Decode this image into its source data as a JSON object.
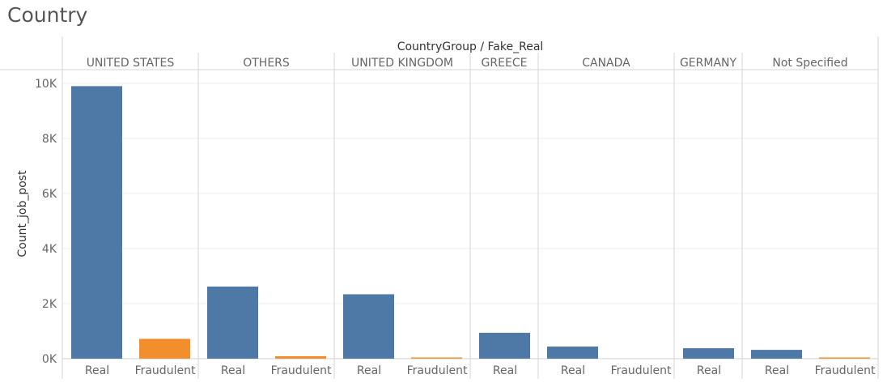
{
  "page": {
    "title": "Country"
  },
  "chart_data": {
    "type": "bar",
    "title": "Country",
    "header": "CountryGroup / Fake_Real",
    "ylabel": "Count_job_post",
    "xlabel": "",
    "groups": [
      "UNITED STATES",
      "OTHERS",
      "UNITED KINGDOM",
      "GREECE",
      "CANADA",
      "GERMANY",
      "Not Specified"
    ],
    "subcategories": [
      "Real",
      "Fraudulent"
    ],
    "series": [
      {
        "name": "Real",
        "values": [
          9900,
          2620,
          2340,
          940,
          440,
          380,
          320
        ]
      },
      {
        "name": "Fraudulent",
        "values": [
          720,
          90,
          20,
          0,
          0,
          0,
          20
        ]
      }
    ],
    "ylim": [
      0,
      10500
    ],
    "yticks": [
      0,
      2000,
      4000,
      6000,
      8000,
      10000
    ],
    "ytick_labels": [
      "0K",
      "2K",
      "4K",
      "6K",
      "8K",
      "10K"
    ],
    "colors": {
      "Real": "#4e79a7",
      "Fraudulent": "#f28e2b"
    },
    "grid": true,
    "legend": "none"
  }
}
